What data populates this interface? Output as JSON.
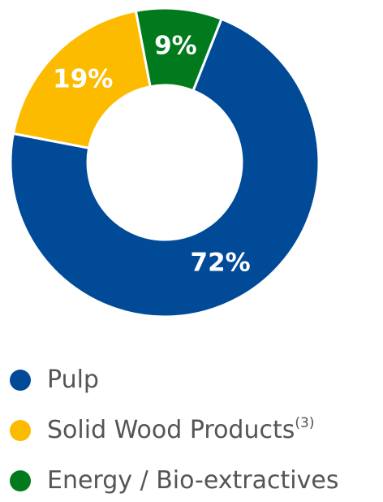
{
  "chart_data": {
    "type": "pie",
    "categories": [
      "Pulp",
      "Solid Wood Products",
      "Energy / Bio-extractives"
    ],
    "values": [
      72,
      19,
      9
    ],
    "value_labels": [
      "72%",
      "19%",
      "9%"
    ],
    "colors": [
      "#004a98",
      "#fdbb00",
      "#007a1c"
    ],
    "legend_notes": [
      null,
      "(3)",
      null
    ]
  }
}
